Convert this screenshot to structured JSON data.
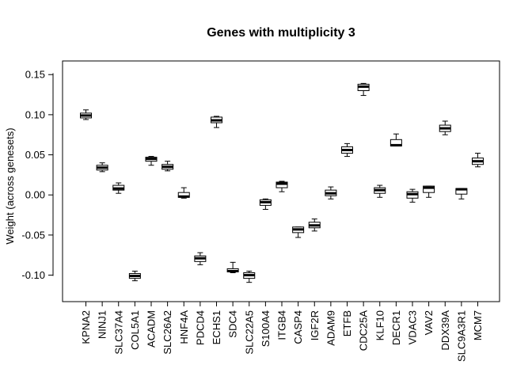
{
  "chart_data": {
    "type": "boxplot",
    "title": "Genes with multiplicity 3",
    "xlabel": "",
    "ylabel": "Weight (across genesets)",
    "ylim": [
      -0.133,
      0.167
    ],
    "yticks": [
      -0.1,
      -0.05,
      0.0,
      0.05,
      0.1,
      0.15
    ],
    "ytick_labels": [
      "-0.10",
      "-0.05",
      "0.00",
      "0.05",
      "0.10",
      "0.15"
    ],
    "legend": "none",
    "grid": false,
    "categories": [
      "KPNA2",
      "NINJ1",
      "SLC37A4",
      "COL5A1",
      "ACADM",
      "SLC26A2",
      "HNF4A",
      "PDCD4",
      "ECHS1",
      "SDC4",
      "SLC22A5",
      "S100A4",
      "ITGB4",
      "CASP4",
      "IGF2R",
      "ADAM9",
      "ETFB",
      "CDC25A",
      "KLF10",
      "DECR1",
      "VDAC3",
      "VAV2",
      "DDX39A",
      "SLC9A3R1",
      "MCM7"
    ],
    "boxes": [
      {
        "min": 0.094,
        "q1": 0.096,
        "median": 0.099,
        "q3": 0.102,
        "max": 0.106
      },
      {
        "min": 0.029,
        "q1": 0.031,
        "median": 0.034,
        "q3": 0.037,
        "max": 0.04
      },
      {
        "min": 0.002,
        "q1": 0.006,
        "median": 0.008,
        "q3": 0.012,
        "max": 0.015
      },
      {
        "min": -0.107,
        "q1": -0.104,
        "median": -0.101,
        "q3": -0.098,
        "max": -0.095
      },
      {
        "min": 0.037,
        "q1": 0.042,
        "median": 0.045,
        "q3": 0.047,
        "max": 0.048
      },
      {
        "min": 0.03,
        "q1": 0.032,
        "median": 0.035,
        "q3": 0.038,
        "max": 0.042
      },
      {
        "min": -0.004,
        "q1": -0.003,
        "median": -0.002,
        "q3": 0.003,
        "max": 0.009
      },
      {
        "min": -0.087,
        "q1": -0.083,
        "median": -0.079,
        "q3": -0.076,
        "max": -0.072
      },
      {
        "min": 0.084,
        "q1": 0.09,
        "median": 0.093,
        "q3": 0.097,
        "max": 0.098
      },
      {
        "min": -0.097,
        "q1": -0.096,
        "median": -0.095,
        "q3": -0.092,
        "max": -0.084
      },
      {
        "min": -0.109,
        "q1": -0.104,
        "median": -0.1,
        "q3": -0.097,
        "max": -0.095
      },
      {
        "min": -0.018,
        "q1": -0.013,
        "median": -0.009,
        "q3": -0.006,
        "max": -0.005
      },
      {
        "min": 0.004,
        "q1": 0.009,
        "median": 0.014,
        "q3": 0.016,
        "max": 0.017
      },
      {
        "min": -0.053,
        "q1": -0.047,
        "median": -0.043,
        "q3": -0.04,
        "max": -0.04
      },
      {
        "min": -0.045,
        "q1": -0.041,
        "median": -0.038,
        "q3": -0.034,
        "max": -0.03
      },
      {
        "min": -0.005,
        "q1": -0.001,
        "median": 0.002,
        "q3": 0.006,
        "max": 0.01
      },
      {
        "min": 0.048,
        "q1": 0.052,
        "median": 0.056,
        "q3": 0.06,
        "max": 0.064
      },
      {
        "min": 0.124,
        "q1": 0.13,
        "median": 0.135,
        "q3": 0.138,
        "max": 0.139
      },
      {
        "min": -0.003,
        "q1": 0.002,
        "median": 0.006,
        "q3": 0.009,
        "max": 0.012
      },
      {
        "min": 0.061,
        "q1": 0.061,
        "median": 0.062,
        "q3": 0.069,
        "max": 0.076
      },
      {
        "min": -0.009,
        "q1": -0.004,
        "median": 0.001,
        "q3": 0.004,
        "max": 0.007
      },
      {
        "min": -0.003,
        "q1": 0.003,
        "median": 0.009,
        "q3": 0.011,
        "max": 0.011
      },
      {
        "min": 0.075,
        "q1": 0.079,
        "median": 0.083,
        "q3": 0.087,
        "max": 0.092
      },
      {
        "min": -0.005,
        "q1": 0.001,
        "median": 0.007,
        "q3": 0.008,
        "max": 0.008
      },
      {
        "min": 0.035,
        "q1": 0.038,
        "median": 0.042,
        "q3": 0.046,
        "max": 0.052
      }
    ]
  }
}
